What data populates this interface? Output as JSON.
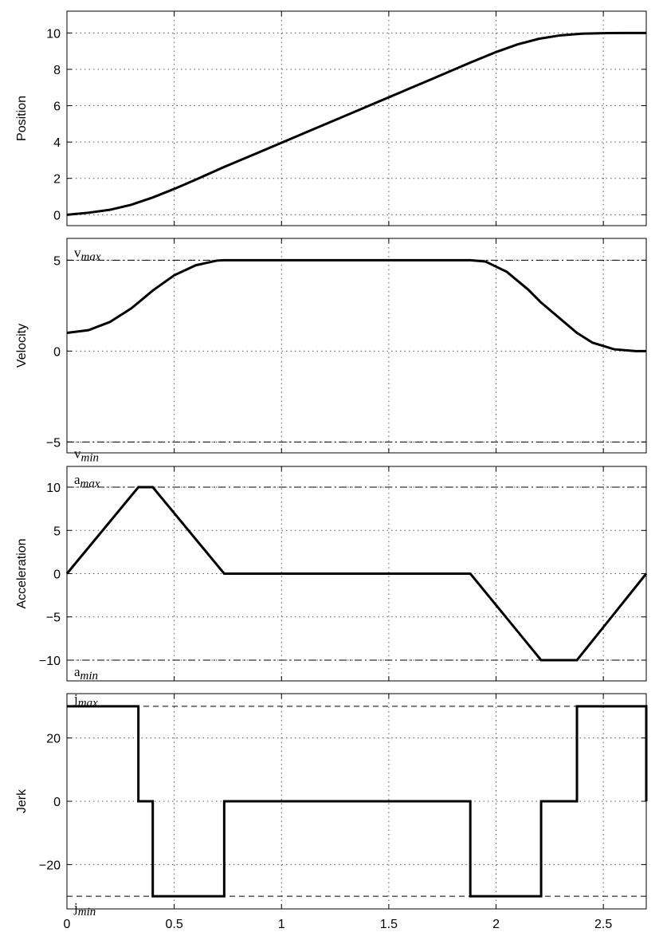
{
  "chart_data": [
    {
      "type": "line",
      "ylabel": "Position",
      "xlim": [
        0,
        2.7
      ],
      "ylim": [
        -0.6,
        11.2
      ],
      "yticks": [
        0,
        2,
        4,
        6,
        8,
        10
      ],
      "xticks": [
        0,
        0.5,
        1,
        1.5,
        2,
        2.5
      ],
      "grid": true,
      "x": [
        0,
        0.1,
        0.2,
        0.3,
        0.4,
        0.5,
        0.6,
        0.733,
        0.9,
        1.1,
        1.3,
        1.5,
        1.7,
        1.88,
        2.0,
        2.1,
        2.2,
        2.3,
        2.4,
        2.5,
        2.6,
        2.7
      ],
      "y": [
        0,
        0.11,
        0.27,
        0.55,
        0.95,
        1.42,
        1.93,
        2.63,
        3.46,
        4.46,
        5.46,
        6.46,
        7.46,
        8.37,
        8.95,
        9.37,
        9.68,
        9.87,
        9.96,
        9.99,
        10.0,
        10.0
      ],
      "reference_lines": []
    },
    {
      "type": "line",
      "ylabel": "Velocity",
      "xlim": [
        0,
        2.7
      ],
      "ylim": [
        -5.6,
        6.2
      ],
      "yticks": [
        -5,
        0,
        5
      ],
      "xticks": [
        0,
        0.5,
        1,
        1.5,
        2,
        2.5
      ],
      "grid": true,
      "x": [
        0,
        0.1,
        0.2,
        0.3,
        0.333,
        0.4,
        0.5,
        0.6,
        0.7,
        0.733,
        1.0,
        1.5,
        1.88,
        1.95,
        2.05,
        2.15,
        2.21,
        2.3,
        2.377,
        2.45,
        2.55,
        2.65,
        2.7
      ],
      "y": [
        1.0,
        1.15,
        1.6,
        2.35,
        2.67,
        3.33,
        4.17,
        4.72,
        4.98,
        5.0,
        5.0,
        5.0,
        5.0,
        4.93,
        4.36,
        3.38,
        2.67,
        1.77,
        1.0,
        0.46,
        0.1,
        0.0,
        0.0
      ],
      "reference_lines": [
        {
          "value": 5,
          "label": "v",
          "sub": "max"
        },
        {
          "value": -5,
          "label": "v",
          "sub": "min"
        }
      ]
    },
    {
      "type": "line",
      "ylabel": "Acceleration",
      "xlim": [
        0,
        2.7
      ],
      "ylim": [
        -12.4,
        12.4
      ],
      "yticks": [
        -10,
        -5,
        0,
        5,
        10
      ],
      "xticks": [
        0,
        0.5,
        1,
        1.5,
        2,
        2.5
      ],
      "grid": true,
      "x": [
        0,
        0.333,
        0.4,
        0.733,
        1.88,
        2.21,
        2.377,
        2.7
      ],
      "y": [
        0,
        10,
        10,
        0,
        0,
        -10,
        -10,
        0
      ],
      "reference_lines": [
        {
          "value": 10,
          "label": "a",
          "sub": "max"
        },
        {
          "value": -10,
          "label": "a",
          "sub": "min"
        }
      ]
    },
    {
      "type": "line",
      "ylabel": "Jerk",
      "xlim": [
        0,
        2.7
      ],
      "ylim": [
        -34,
        34
      ],
      "yticks": [
        -20,
        0,
        20
      ],
      "xticks": [
        0,
        0.5,
        1,
        1.5,
        2,
        2.5
      ],
      "xticklabels": [
        "0",
        "0.5",
        "1",
        "1.5",
        "2",
        "2.5"
      ],
      "grid": true,
      "x": [
        0,
        0.333,
        0.333,
        0.4,
        0.4,
        0.733,
        0.733,
        1.88,
        1.88,
        2.21,
        2.21,
        2.377,
        2.377,
        2.7,
        2.7
      ],
      "y": [
        30,
        30,
        0,
        0,
        -30,
        -30,
        0,
        0,
        -30,
        -30,
        0,
        0,
        30,
        30,
        0
      ],
      "reference_lines": [
        {
          "value": 30,
          "label": "j",
          "sub": "max"
        },
        {
          "value": -30,
          "label": "j",
          "sub": "min"
        }
      ]
    }
  ]
}
